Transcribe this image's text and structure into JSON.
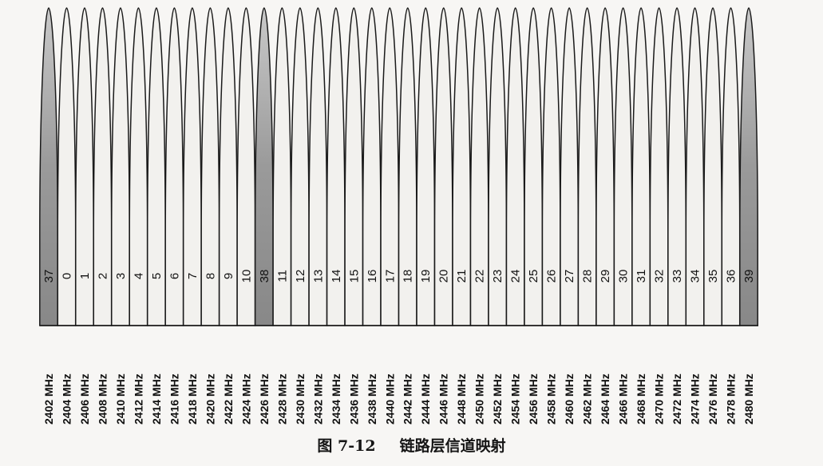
{
  "figure": {
    "caption_number": "图 7-12",
    "caption_title": "链路层信道映射"
  },
  "channels": [
    {
      "index": "37",
      "freq": "2402 MHz",
      "advertising": true
    },
    {
      "index": "0",
      "freq": "2404 MHz",
      "advertising": false
    },
    {
      "index": "1",
      "freq": "2406 MHz",
      "advertising": false
    },
    {
      "index": "2",
      "freq": "2408 MHz",
      "advertising": false
    },
    {
      "index": "3",
      "freq": "2410 MHz",
      "advertising": false
    },
    {
      "index": "4",
      "freq": "2412 MHz",
      "advertising": false
    },
    {
      "index": "5",
      "freq": "2414 MHz",
      "advertising": false
    },
    {
      "index": "6",
      "freq": "2416 MHz",
      "advertising": false
    },
    {
      "index": "7",
      "freq": "2418 MHz",
      "advertising": false
    },
    {
      "index": "8",
      "freq": "2420 MHz",
      "advertising": false
    },
    {
      "index": "9",
      "freq": "2422 MHz",
      "advertising": false
    },
    {
      "index": "10",
      "freq": "2424 MHz",
      "advertising": false
    },
    {
      "index": "38",
      "freq": "2426 MHz",
      "advertising": true
    },
    {
      "index": "11",
      "freq": "2428 MHz",
      "advertising": false
    },
    {
      "index": "12",
      "freq": "2430 MHz",
      "advertising": false
    },
    {
      "index": "13",
      "freq": "2432 MHz",
      "advertising": false
    },
    {
      "index": "14",
      "freq": "2434 MHz",
      "advertising": false
    },
    {
      "index": "15",
      "freq": "2436 MHz",
      "advertising": false
    },
    {
      "index": "16",
      "freq": "2438 MHz",
      "advertising": false
    },
    {
      "index": "17",
      "freq": "2440 MHz",
      "advertising": false
    },
    {
      "index": "18",
      "freq": "2442 MHz",
      "advertising": false
    },
    {
      "index": "19",
      "freq": "2444 MHz",
      "advertising": false
    },
    {
      "index": "20",
      "freq": "2446 MHz",
      "advertising": false
    },
    {
      "index": "21",
      "freq": "2448 MHz",
      "advertising": false
    },
    {
      "index": "22",
      "freq": "2450 MHz",
      "advertising": false
    },
    {
      "index": "23",
      "freq": "2452 MHz",
      "advertising": false
    },
    {
      "index": "24",
      "freq": "2454 MHz",
      "advertising": false
    },
    {
      "index": "25",
      "freq": "2456 MHz",
      "advertising": false
    },
    {
      "index": "26",
      "freq": "2458 MHz",
      "advertising": false
    },
    {
      "index": "27",
      "freq": "2460 MHz",
      "advertising": false
    },
    {
      "index": "28",
      "freq": "2462 MHz",
      "advertising": false
    },
    {
      "index": "29",
      "freq": "2464 MHz",
      "advertising": false
    },
    {
      "index": "30",
      "freq": "2466 MHz",
      "advertising": false
    },
    {
      "index": "31",
      "freq": "2468 MHz",
      "advertising": false
    },
    {
      "index": "32",
      "freq": "2470 MHz",
      "advertising": false
    },
    {
      "index": "33",
      "freq": "2472 MHz",
      "advertising": false
    },
    {
      "index": "34",
      "freq": "2474 MHz",
      "advertising": false
    },
    {
      "index": "35",
      "freq": "2476 MHz",
      "advertising": false
    },
    {
      "index": "36",
      "freq": "2478 MHz",
      "advertising": false
    },
    {
      "index": "39",
      "freq": "2480 MHz",
      "advertising": true
    }
  ],
  "colors": {
    "advertising_fill": "#8f8f8f",
    "data_fill": "#f2f1ee",
    "outline": "#1a1a1a"
  }
}
